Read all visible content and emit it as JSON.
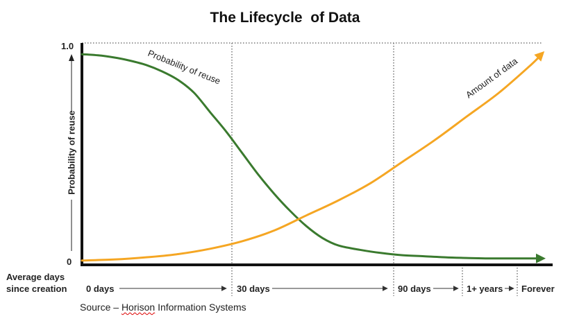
{
  "chart_data": {
    "type": "line",
    "title": "The Lifecycle  of Data",
    "ylabel": "Probability of reuse",
    "xlabel": [
      "Average days",
      "since creation"
    ],
    "ylim": [
      0,
      1
    ],
    "y_ticks": [
      "1.0",
      "0"
    ],
    "x_stages": [
      "0 days",
      "30 days",
      "90 days",
      "1+ years",
      "Forever"
    ],
    "grid": "dotted vertical lines at stage boundaries and top border",
    "series": [
      {
        "name": "Probability of reuse",
        "color": "#3a7a2e",
        "x": [
          0,
          0.75,
          1.5,
          2.25,
          3,
          3.75,
          4.5,
          5.25,
          6,
          6.75,
          7.5,
          8.25,
          9.0,
          9.75,
          10.5,
          11.25,
          12,
          13,
          14,
          15,
          16,
          17,
          18,
          19,
          20,
          21.5
        ],
        "values": [
          0.98,
          0.975,
          0.965,
          0.95,
          0.93,
          0.9,
          0.86,
          0.8,
          0.71,
          0.62,
          0.52,
          0.42,
          0.33,
          0.25,
          0.18,
          0.125,
          0.09,
          0.07,
          0.055,
          0.045,
          0.04,
          0.035,
          0.032,
          0.03,
          0.03,
          0.03
        ]
      },
      {
        "name": "Amount of data",
        "color": "#f5a623",
        "x": [
          0,
          1.5,
          3,
          4.5,
          6,
          7.5,
          9,
          10.5,
          12,
          13.5,
          15,
          16.5,
          18,
          19.5,
          21,
          21.5
        ],
        "values": [
          0.02,
          0.025,
          0.035,
          0.05,
          0.075,
          0.11,
          0.16,
          0.23,
          0.3,
          0.38,
          0.48,
          0.58,
          0.69,
          0.8,
          0.93,
          0.98
        ]
      }
    ]
  },
  "source_prefix": "Source – ",
  "source_org": "Horison",
  "source_suffix": " Information Systems"
}
